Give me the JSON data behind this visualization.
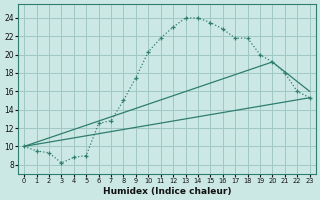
{
  "xlabel": "Humidex (Indice chaleur)",
  "bg_color": "#cce8e4",
  "grid_color": "#a0c8c4",
  "line_color": "#2e7d6e",
  "xlim": [
    -0.5,
    23.5
  ],
  "ylim": [
    7.0,
    25.5
  ],
  "xticks": [
    0,
    1,
    2,
    3,
    4,
    5,
    6,
    7,
    8,
    9,
    10,
    11,
    12,
    13,
    14,
    15,
    16,
    17,
    18,
    19,
    20,
    21,
    22,
    23
  ],
  "yticks": [
    8,
    10,
    12,
    14,
    16,
    18,
    20,
    22,
    24
  ],
  "line1_x": [
    0,
    1,
    2,
    3,
    4,
    5,
    6,
    7,
    8,
    9,
    10,
    11,
    12,
    13,
    14,
    15,
    16,
    17,
    18,
    19,
    20,
    21,
    22,
    23
  ],
  "line1_y": [
    10.0,
    9.5,
    9.3,
    8.2,
    8.8,
    9.0,
    12.5,
    12.8,
    15.0,
    17.5,
    20.3,
    21.8,
    23.0,
    24.0,
    24.0,
    23.5,
    22.8,
    21.8,
    21.8,
    20.0,
    19.2,
    18.0,
    16.0,
    15.3
  ],
  "line2_x": [
    0,
    20,
    23
  ],
  "line2_y": [
    10.0,
    19.2,
    16.0
  ],
  "line3_x": [
    0,
    23
  ],
  "line3_y": [
    10.0,
    15.3
  ]
}
